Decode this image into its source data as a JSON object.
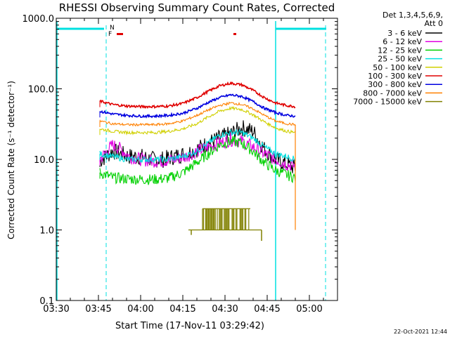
{
  "chart_data": {
    "type": "line",
    "title": "RHESSI Observing Summary Count Rates, Corrected",
    "xlabel": "Start Time (17-Nov-11 03:29:42)",
    "ylabel": "Corrected Count Rate (s⁻¹ detector⁻¹)",
    "yscale": "log",
    "ylim": [
      0.1,
      1000
    ],
    "xlim_minutes": [
      0,
      100
    ],
    "x_ticks": [
      "03:30",
      "03:45",
      "04:00",
      "04:15",
      "04:30",
      "04:45",
      "05:00"
    ],
    "y_ticks": [
      "0.1",
      "1.0",
      "10.0",
      "100.0",
      "1000.0"
    ],
    "legend_header": [
      "Det 1,3,4,5,6,9,",
      "Att 0"
    ],
    "legend_position": "top-right",
    "footer_date": "22-Oct-2021 12:44",
    "flags": {
      "N": "N",
      "F": "F"
    },
    "series": [
      {
        "name": "3 - 6 keV",
        "color": "#000000",
        "x": [
          15.5,
          20,
          23,
          26,
          30,
          34,
          38,
          42,
          46,
          50,
          54,
          58,
          62,
          66,
          70,
          74,
          78,
          82,
          85
        ],
        "values": [
          9.5,
          13,
          12,
          11,
          11,
          10,
          10,
          11,
          12,
          14,
          17,
          20,
          23,
          28,
          25,
          14,
          10,
          8.5,
          7.5
        ]
      },
      {
        "name": "6 - 12 keV",
        "color": "#e000e0",
        "x": [
          15.5,
          20,
          23,
          26,
          30,
          34,
          38,
          42,
          46,
          50,
          54,
          58,
          62,
          66,
          70,
          74,
          78,
          82,
          85
        ],
        "values": [
          10,
          16,
          14,
          11,
          10,
          9.5,
          9.5,
          10,
          11,
          13,
          15,
          17,
          19,
          18,
          15,
          12,
          10,
          8.5,
          8
        ]
      },
      {
        "name": "12 - 25 keV",
        "color": "#00d000",
        "x": [
          15.5,
          20,
          25,
          30,
          35,
          40,
          45,
          50,
          54,
          58,
          62,
          66,
          70,
          74,
          78,
          82,
          85
        ],
        "values": [
          6.5,
          5.5,
          5.3,
          5.2,
          5.2,
          5.4,
          6.5,
          9,
          12,
          16,
          18,
          17,
          13,
          9,
          7,
          6,
          5.5
        ]
      },
      {
        "name": "25 - 50 keV",
        "color": "#00e0e0",
        "x": [
          15.5,
          20,
          25,
          30,
          35,
          40,
          45,
          50,
          54,
          58,
          62,
          66,
          70,
          74,
          78,
          82,
          85
        ],
        "values": [
          12,
          11,
          10,
          10,
          10,
          10,
          11,
          13,
          17,
          22,
          24,
          24,
          20,
          15,
          12,
          11,
          10
        ]
      },
      {
        "name": "50 - 100 keV",
        "color": "#d0d000",
        "x": [
          15.5,
          20,
          25,
          30,
          35,
          40,
          45,
          50,
          54,
          58,
          62,
          66,
          70,
          74,
          78,
          82,
          85
        ],
        "values": [
          27,
          25,
          24,
          24,
          24,
          25,
          27,
          32,
          40,
          48,
          53,
          51,
          43,
          34,
          28,
          25,
          24
        ]
      },
      {
        "name": "100 - 300 keV",
        "color": "#e00000",
        "x": [
          15.5,
          20,
          25,
          30,
          35,
          40,
          45,
          50,
          54,
          58,
          62,
          66,
          70,
          74,
          78,
          82,
          85
        ],
        "values": [
          67,
          60,
          57,
          56,
          56,
          57,
          62,
          75,
          92,
          110,
          120,
          114,
          95,
          75,
          63,
          58,
          56
        ]
      },
      {
        "name": "300 - 800 keV",
        "color": "#0000e0",
        "x": [
          15.5,
          20,
          25,
          30,
          35,
          40,
          45,
          50,
          54,
          58,
          62,
          66,
          70,
          74,
          78,
          82,
          85
        ],
        "values": [
          48,
          44,
          42,
          41,
          41,
          42,
          45,
          53,
          64,
          75,
          82,
          78,
          66,
          53,
          46,
          42,
          41
        ]
      },
      {
        "name": "800 - 7000 keV",
        "color": "#ff8000",
        "x": [
          15.5,
          20,
          25,
          30,
          35,
          40,
          45,
          50,
          54,
          58,
          62,
          66,
          70,
          74,
          78,
          82,
          85
        ],
        "values": [
          35,
          32,
          31,
          31,
          31,
          32,
          35,
          42,
          50,
          58,
          63,
          60,
          52,
          42,
          35,
          32,
          31
        ]
      },
      {
        "name": "7000 - 15000 keV",
        "color": "#808000",
        "x": [
          48,
          50,
          52,
          54,
          56,
          58,
          60,
          62,
          64,
          66,
          68,
          70,
          72
        ],
        "values": [
          1.0,
          1.0,
          1.0,
          1.0,
          2.0,
          1.0,
          2.0,
          1.0,
          2.0,
          1.0,
          2.0,
          1.0,
          1.0
        ]
      }
    ]
  }
}
